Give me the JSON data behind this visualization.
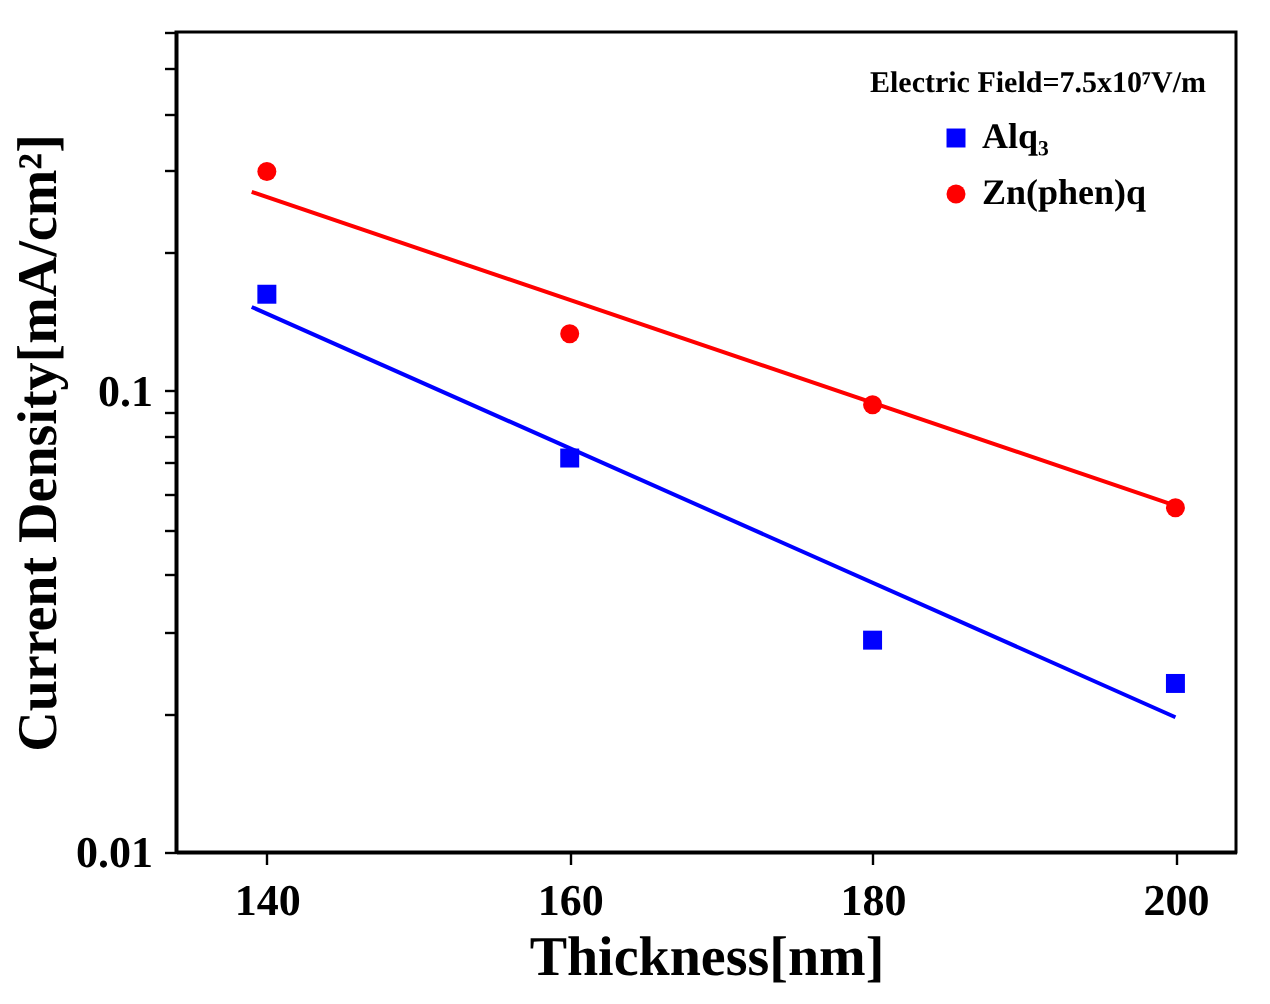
{
  "chart_data": {
    "type": "scatter",
    "xlabel": "Thickness[nm]",
    "ylabel": "Current Density[mA/cm²]",
    "annotations": [
      "Electric Field=7.5x10⁷V/m"
    ],
    "log": "y",
    "xlim": [
      134,
      204
    ],
    "ylim": [
      0.01,
      0.6
    ],
    "xticks": [
      140,
      160,
      180,
      200
    ],
    "yticks": [
      0.01,
      {
        "value": 0.02,
        "label": null
      },
      {
        "value": 0.03,
        "label": null
      },
      {
        "value": 0.04,
        "label": null
      },
      {
        "value": 0.05,
        "label": null
      },
      {
        "value": 0.06,
        "label": null
      },
      {
        "value": 0.07,
        "label": null
      },
      {
        "value": 0.08,
        "label": null
      },
      {
        "value": 0.09,
        "label": null
      },
      0.1,
      {
        "value": 0.2,
        "label": null
      },
      {
        "value": 0.3,
        "label": null
      },
      {
        "value": 0.4,
        "label": null
      },
      {
        "value": 0.5,
        "label": null
      },
      {
        "value": 0.6,
        "label": null
      }
    ],
    "grid": false,
    "legend": "top right",
    "series": [
      {
        "name": "Alq₃",
        "marker": "square",
        "color": "#0000ff",
        "x": [
          140,
          160,
          180,
          200
        ],
        "values": [
          0.162,
          0.0715,
          0.0288,
          0.0232
        ]
      },
      {
        "name": "Zn(phen)q",
        "marker": "circle",
        "color": "#ff0000",
        "x": [
          140,
          160,
          180,
          200
        ],
        "values": [
          0.299,
          0.133,
          0.0933,
          0.0558
        ]
      },
      {
        "type": "line",
        "color": "#0000ff",
        "x": [
          139,
          200
        ],
        "values": [
          0.152,
          0.0196
        ]
      },
      {
        "type": "line",
        "color": "#ff0000",
        "x": [
          139,
          200
        ],
        "values": [
          0.27,
          0.0564
        ]
      }
    ]
  }
}
